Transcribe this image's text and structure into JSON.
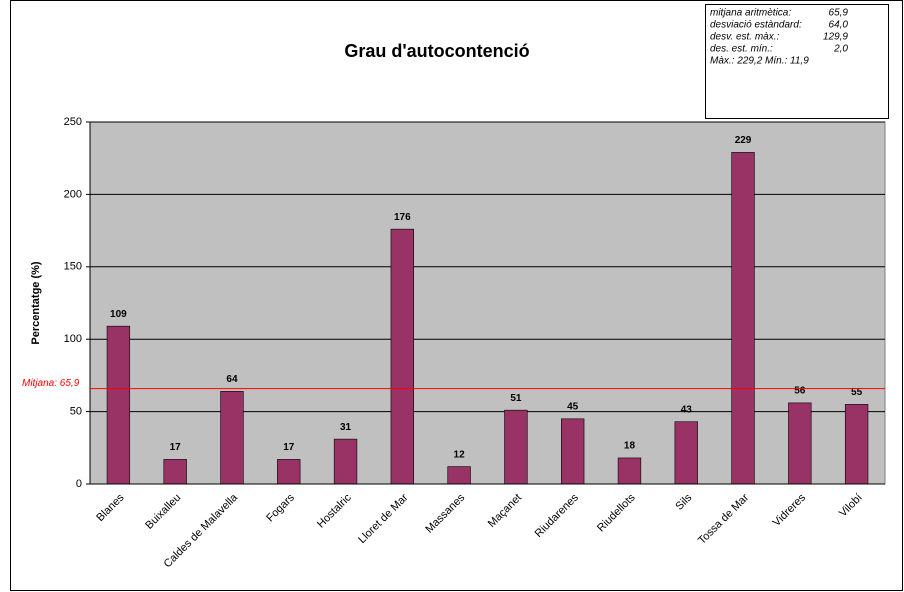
{
  "chart_data": {
    "type": "bar",
    "title": "Grau d'autocontenció",
    "y_label": "Percentatge (%)",
    "categories": [
      "Blanes",
      "Buixalleu",
      "Caldes de Malavella",
      "Fogars",
      "Hostalric",
      "Lloret de Mar",
      "Massanes",
      "Maçanet",
      "Riudarenes",
      "Riudellots",
      "Sils",
      "Tossa de Mar",
      "Vidreres",
      "Vilobí"
    ],
    "values": [
      109,
      17,
      64,
      17,
      31,
      176,
      12,
      51,
      45,
      18,
      43,
      229,
      56,
      55
    ],
    "color": "#993366",
    "ylim": [
      0,
      250
    ],
    "yticks": [
      0,
      50,
      100,
      150,
      200,
      250
    ],
    "grid": true,
    "mean": {
      "value": 65.9,
      "label": "Mitjana: 65,9",
      "color": "#ff0000"
    },
    "stats": [
      {
        "label": "mitjana aritmètica:",
        "value": "65,9"
      },
      {
        "label": "desviació estàndard:",
        "value": "64,0"
      },
      {
        "label": "desv. est. màx.:",
        "value": "129,9"
      },
      {
        "label": "des. est. mín.:",
        "value": "2,0"
      }
    ],
    "stats_extra": "Màx.: 229,2   Mín.: 11,9"
  }
}
